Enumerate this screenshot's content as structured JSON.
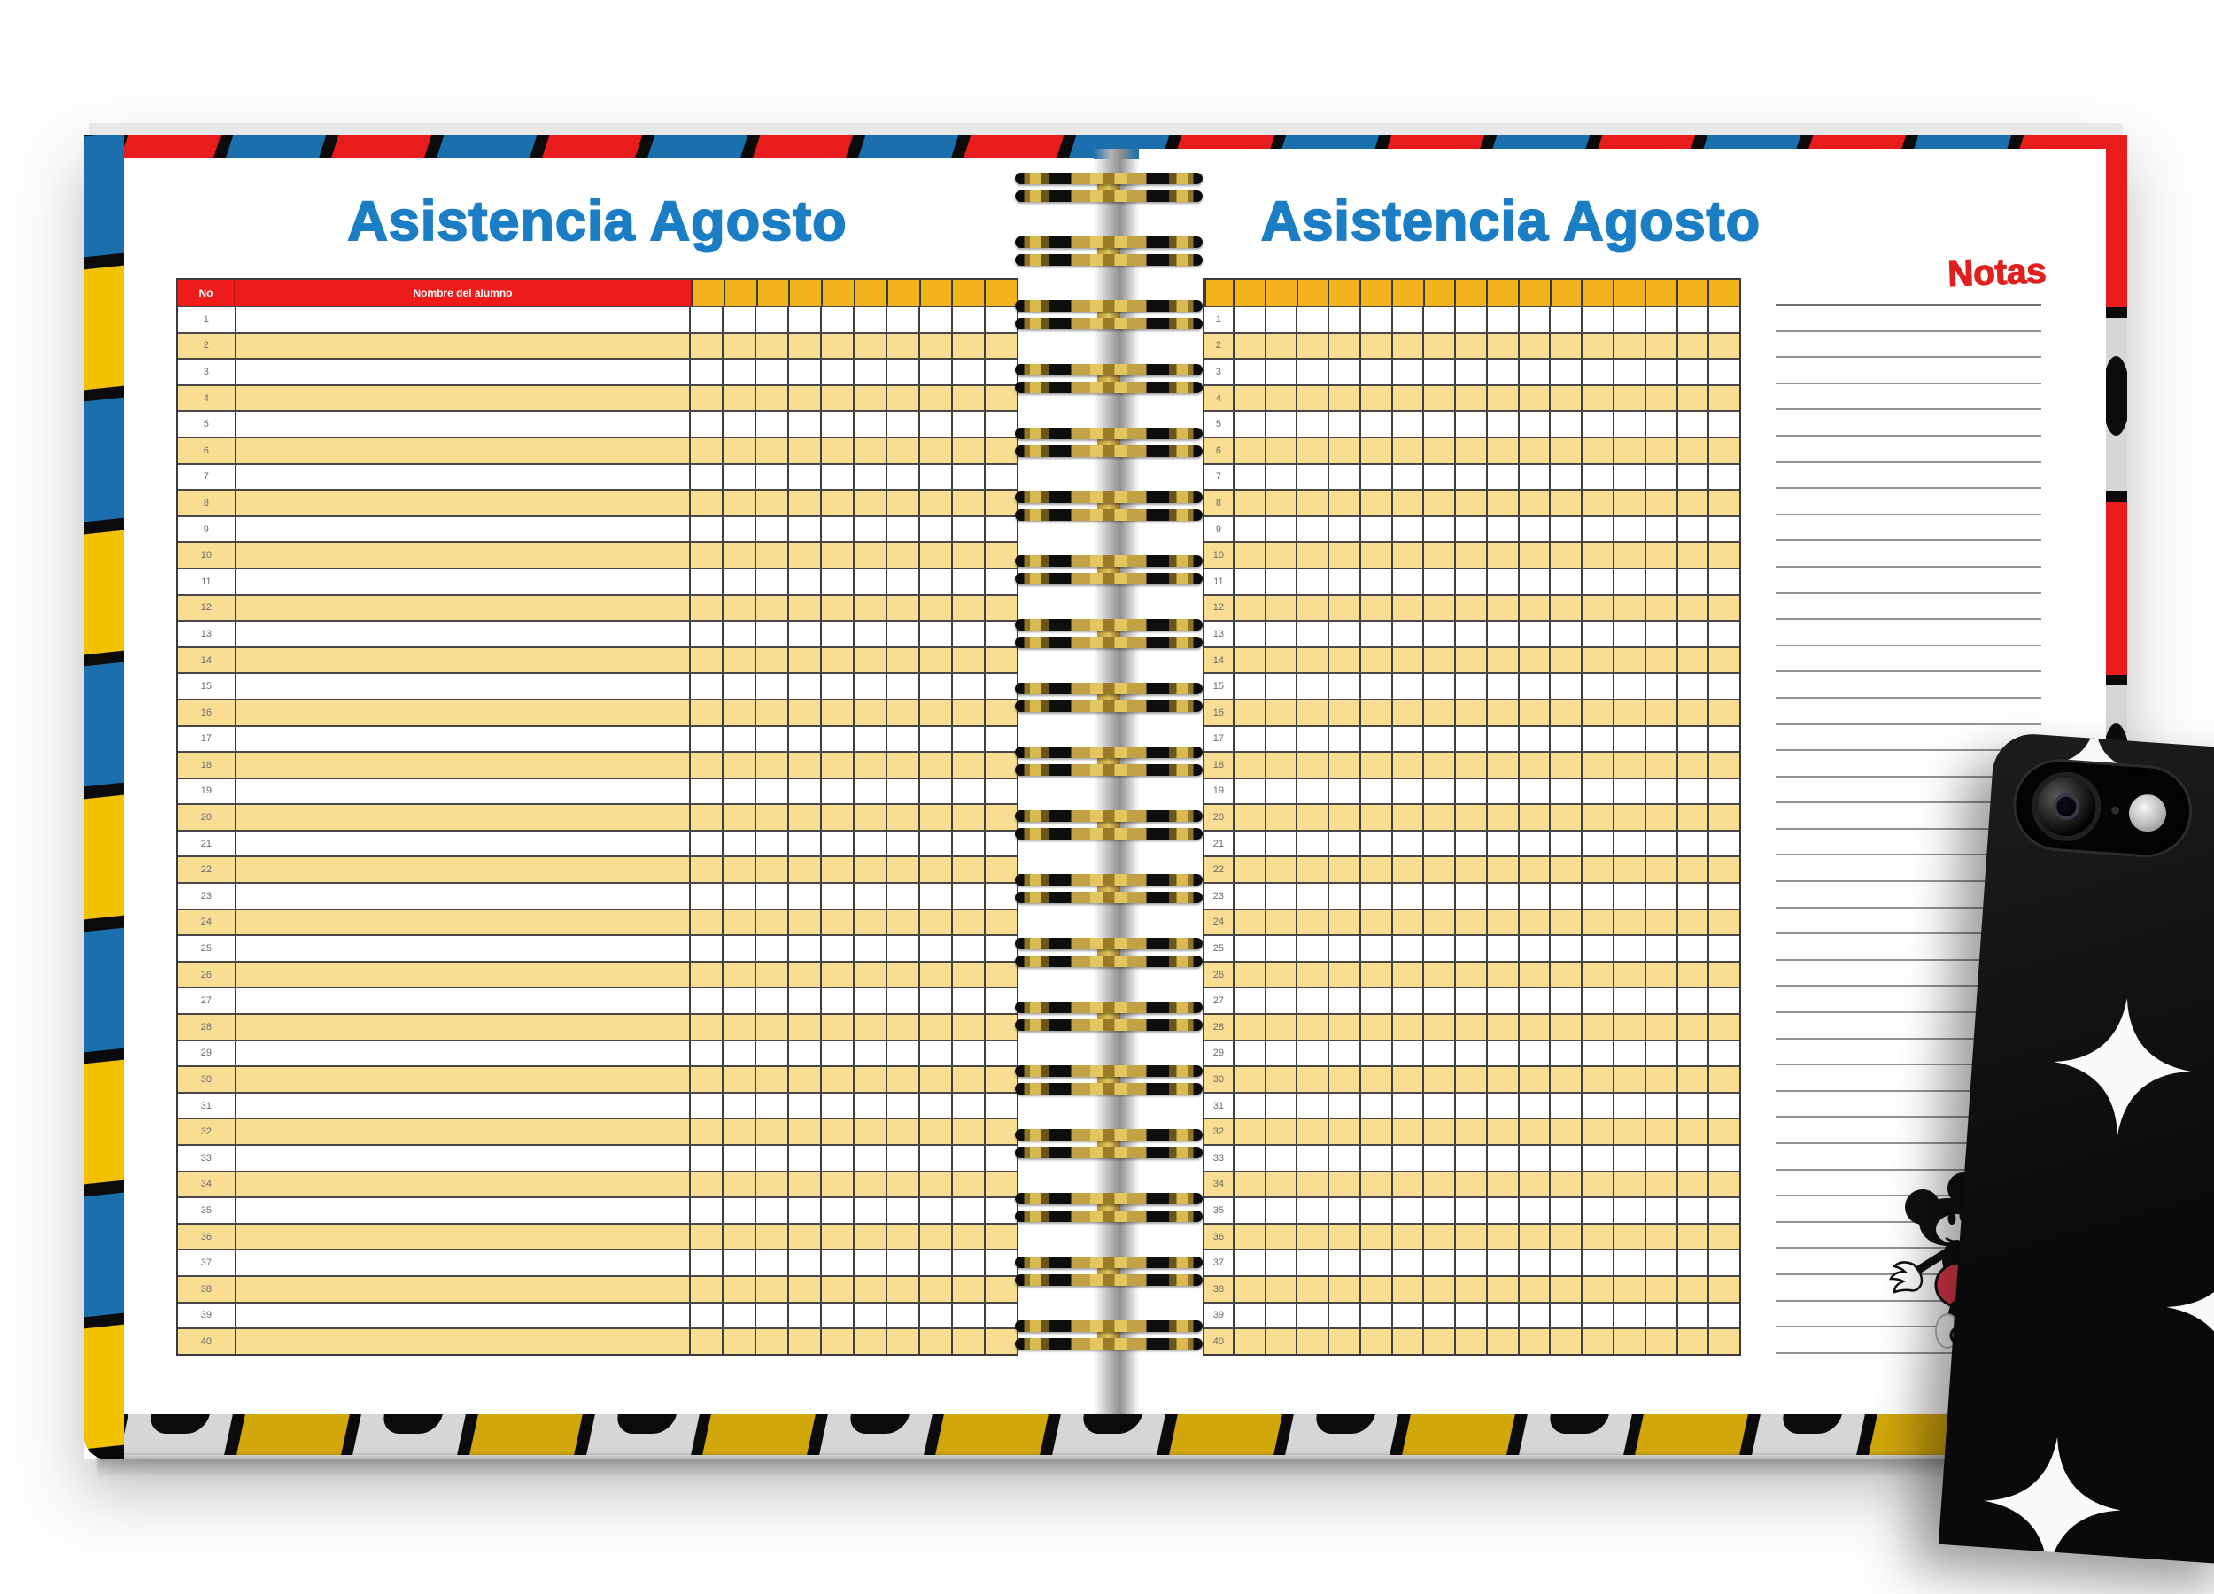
{
  "left_page": {
    "title": "Asistencia Agosto",
    "table": {
      "col_no": "No",
      "col_name": "Nombre del alumno",
      "day_columns": 10
    }
  },
  "right_page": {
    "title": "Asistencia Agosto",
    "table": {
      "day_columns": 16
    },
    "notas": {
      "title": "Notas",
      "lines": 41
    }
  },
  "row_numbers": [
    "1",
    "2",
    "3",
    "4",
    "5",
    "6",
    "7",
    "8",
    "9",
    "10",
    "11",
    "12",
    "13",
    "14",
    "15",
    "16",
    "17",
    "18",
    "19",
    "20",
    "21",
    "22",
    "23",
    "24",
    "25",
    "26",
    "27",
    "28",
    "29",
    "30",
    "31",
    "32",
    "33",
    "34",
    "35",
    "36",
    "37",
    "38",
    "39",
    "40"
  ],
  "binding_coils": 19,
  "icons": {
    "camera_lens": "camera-lens-icon",
    "camera_flash": "camera-flash-icon",
    "diamond": "diamond-star-shape",
    "mickey": "mickey-basketball-illustration"
  },
  "colors": {
    "title_blue": "#1b7ec5",
    "header_red": "#ee1b1b",
    "header_orange": "#f3b31c",
    "row_yellow": "#f8dd92",
    "notas_red": "#e01f1f",
    "notas_line": "#939393",
    "cover_red": "#e81c1c",
    "cover_blue": "#1c6fad",
    "cover_yellow": "#f2c200",
    "cover_gray": "#d6d6d6",
    "bottom_yellow": "#d2a70b",
    "spiral_gold": "#c9a73f"
  }
}
